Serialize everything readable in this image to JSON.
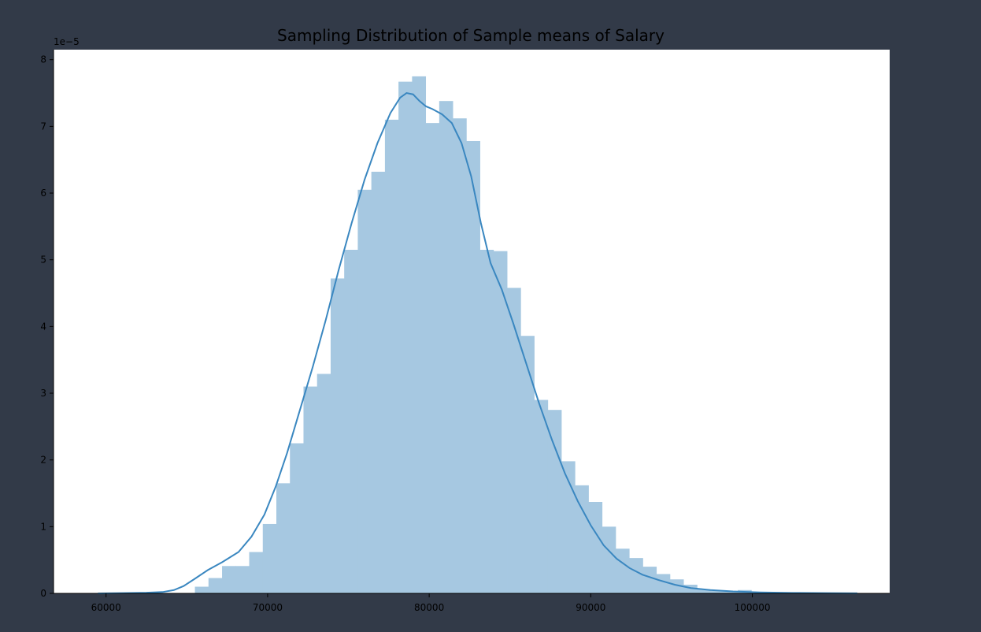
{
  "chart_data": {
    "type": "bar",
    "title": "Sampling Distribution of Sample means of Salary",
    "xlabel": "",
    "ylabel": "",
    "y_offset_label": "1e−5",
    "xlim": [
      56750,
      108500
    ],
    "ylim": [
      0,
      8.15
    ],
    "x_ticks": [
      60000,
      70000,
      80000,
      90000,
      100000
    ],
    "x_tick_labels": [
      "60000",
      "70000",
      "80000",
      "90000",
      "100000"
    ],
    "y_ticks": [
      0,
      1,
      2,
      3,
      4,
      5,
      6,
      7,
      8
    ],
    "y_tick_labels": [
      "0",
      "1",
      "2",
      "3",
      "4",
      "5",
      "6",
      "7",
      "8"
    ],
    "grid": false,
    "legend": "none",
    "colors": {
      "background": "#323a48",
      "plot_area": "#ffffff",
      "bar_fill": "#a6c8e1",
      "kde_line": "#3a87c0",
      "axis": "#000000"
    },
    "histogram": {
      "bin_edges": [
        65500,
        66340,
        67180,
        68020,
        68860,
        69700,
        70540,
        71380,
        72220,
        73060,
        73900,
        74740,
        75580,
        76420,
        77260,
        78100,
        78940,
        79780,
        80620,
        81460,
        82300,
        83140,
        83980,
        84820,
        85660,
        86500,
        87340,
        88180,
        89020,
        89860,
        90700,
        91540,
        92380,
        93220,
        94060,
        94900,
        95740,
        96580,
        97420,
        98260,
        99100,
        99940
      ],
      "densities": [
        0.1,
        0.23,
        0.41,
        0.41,
        0.62,
        1.04,
        1.65,
        2.25,
        3.1,
        3.29,
        4.72,
        5.15,
        6.05,
        6.32,
        7.1,
        7.67,
        7.75,
        7.05,
        7.38,
        7.12,
        6.78,
        5.15,
        5.13,
        4.58,
        3.86,
        2.9,
        2.75,
        1.98,
        1.62,
        1.37,
        1.0,
        0.67,
        0.53,
        0.4,
        0.29,
        0.21,
        0.13,
        0.06,
        0.04,
        0.03,
        0.05
      ]
    },
    "kde": {
      "x": [
        59500,
        61000,
        62500,
        63500,
        64200,
        64800,
        65500,
        66300,
        67200,
        68200,
        69000,
        69800,
        70500,
        71200,
        72000,
        72800,
        73600,
        74400,
        75200,
        76000,
        76800,
        77600,
        78200,
        78600,
        79000,
        79400,
        79800,
        80200,
        80800,
        81400,
        82000,
        82600,
        83200,
        83800,
        84500,
        85200,
        86000,
        86800,
        87600,
        88400,
        89200,
        90000,
        90800,
        91600,
        92400,
        93200,
        94200,
        95200,
        96200,
        97400,
        98800,
        100500,
        102500,
        104500,
        106500
      ],
      "y": [
        0.0,
        0.005,
        0.01,
        0.02,
        0.05,
        0.11,
        0.22,
        0.35,
        0.47,
        0.62,
        0.85,
        1.18,
        1.6,
        2.1,
        2.75,
        3.4,
        4.1,
        4.85,
        5.55,
        6.2,
        6.75,
        7.2,
        7.43,
        7.5,
        7.48,
        7.38,
        7.3,
        7.26,
        7.18,
        7.05,
        6.75,
        6.25,
        5.55,
        4.95,
        4.55,
        4.05,
        3.45,
        2.85,
        2.3,
        1.8,
        1.38,
        1.02,
        0.72,
        0.52,
        0.38,
        0.28,
        0.2,
        0.13,
        0.08,
        0.05,
        0.03,
        0.015,
        0.008,
        0.004,
        0.002
      ]
    }
  }
}
